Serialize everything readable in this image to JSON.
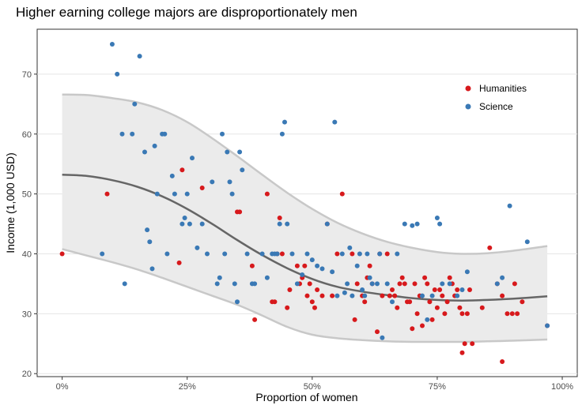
{
  "chart_data": {
    "type": "scatter",
    "title": "Higher earning college majors are disproportionately men",
    "xlabel": "Proportion of women",
    "ylabel": "Income (1,000 USD)",
    "xlim": [
      -0.05,
      1.03
    ],
    "ylim": [
      19.5,
      77.5
    ],
    "x_ticks": [
      0,
      0.25,
      0.5,
      0.75,
      1.0
    ],
    "x_tick_labels": [
      "0%",
      "25%",
      "50%",
      "75%",
      "100%"
    ],
    "y_ticks": [
      20,
      30,
      40,
      50,
      60,
      70
    ],
    "y_tick_labels": [
      "20",
      "30",
      "40",
      "50",
      "60",
      "70"
    ],
    "grid": true,
    "legend_position": "top-right",
    "colors": {
      "Humanities": "#d7191c",
      "Science": "#3a79b5",
      "fit_line": "#666666",
      "band_fill": "#ebebeb",
      "band_edge": "#c8c8c8",
      "grid": "#e5e5e5",
      "panel_border": "#333333"
    },
    "series": [
      {
        "name": "Humanities",
        "color": "#d7191c",
        "points": [
          [
            0.0,
            40
          ],
          [
            0.09,
            50
          ],
          [
            0.24,
            54
          ],
          [
            0.234,
            38.5
          ],
          [
            0.28,
            51
          ],
          [
            0.35,
            47
          ],
          [
            0.355,
            47
          ],
          [
            0.38,
            38
          ],
          [
            0.385,
            29
          ],
          [
            0.41,
            50
          ],
          [
            0.42,
            32
          ],
          [
            0.425,
            32
          ],
          [
            0.435,
            46
          ],
          [
            0.43,
            40
          ],
          [
            0.44,
            40
          ],
          [
            0.45,
            31
          ],
          [
            0.455,
            34
          ],
          [
            0.47,
            38
          ],
          [
            0.475,
            35
          ],
          [
            0.48,
            36
          ],
          [
            0.485,
            38
          ],
          [
            0.49,
            33
          ],
          [
            0.495,
            35
          ],
          [
            0.5,
            32
          ],
          [
            0.505,
            31
          ],
          [
            0.51,
            34
          ],
          [
            0.52,
            33
          ],
          [
            0.53,
            45
          ],
          [
            0.54,
            33
          ],
          [
            0.55,
            40
          ],
          [
            0.56,
            50
          ],
          [
            0.58,
            40
          ],
          [
            0.585,
            29
          ],
          [
            0.59,
            35
          ],
          [
            0.6,
            33
          ],
          [
            0.605,
            32
          ],
          [
            0.61,
            36
          ],
          [
            0.615,
            38
          ],
          [
            0.62,
            35
          ],
          [
            0.63,
            27
          ],
          [
            0.635,
            40
          ],
          [
            0.64,
            33
          ],
          [
            0.65,
            40
          ],
          [
            0.655,
            33
          ],
          [
            0.66,
            34
          ],
          [
            0.665,
            33
          ],
          [
            0.67,
            31
          ],
          [
            0.675,
            35
          ],
          [
            0.68,
            36
          ],
          [
            0.685,
            35
          ],
          [
            0.69,
            32
          ],
          [
            0.695,
            32
          ],
          [
            0.7,
            27.5
          ],
          [
            0.705,
            35
          ],
          [
            0.71,
            30
          ],
          [
            0.715,
            33
          ],
          [
            0.72,
            28
          ],
          [
            0.725,
            36
          ],
          [
            0.73,
            35
          ],
          [
            0.735,
            32
          ],
          [
            0.74,
            29
          ],
          [
            0.745,
            34
          ],
          [
            0.75,
            31
          ],
          [
            0.755,
            34
          ],
          [
            0.76,
            33
          ],
          [
            0.765,
            30
          ],
          [
            0.77,
            32
          ],
          [
            0.775,
            36
          ],
          [
            0.78,
            35
          ],
          [
            0.785,
            33
          ],
          [
            0.79,
            34
          ],
          [
            0.795,
            31
          ],
          [
            0.8,
            30
          ],
          [
            0.805,
            25
          ],
          [
            0.8,
            23.5
          ],
          [
            0.81,
            30
          ],
          [
            0.815,
            34
          ],
          [
            0.82,
            25
          ],
          [
            0.84,
            31
          ],
          [
            0.855,
            41
          ],
          [
            0.87,
            35
          ],
          [
            0.88,
            33
          ],
          [
            0.88,
            22
          ],
          [
            0.89,
            30
          ],
          [
            0.9,
            30
          ],
          [
            0.905,
            35
          ],
          [
            0.91,
            30
          ],
          [
            0.92,
            32
          ],
          [
            0.97,
            28
          ]
        ]
      },
      {
        "name": "Science",
        "color": "#3a79b5",
        "points": [
          [
            0.08,
            40
          ],
          [
            0.1,
            75
          ],
          [
            0.11,
            70
          ],
          [
            0.12,
            60
          ],
          [
            0.125,
            35
          ],
          [
            0.14,
            60
          ],
          [
            0.145,
            65
          ],
          [
            0.155,
            73
          ],
          [
            0.165,
            57
          ],
          [
            0.17,
            44
          ],
          [
            0.175,
            42
          ],
          [
            0.18,
            37.5
          ],
          [
            0.185,
            58
          ],
          [
            0.19,
            50
          ],
          [
            0.2,
            60
          ],
          [
            0.205,
            60
          ],
          [
            0.21,
            40
          ],
          [
            0.22,
            53
          ],
          [
            0.225,
            50
          ],
          [
            0.24,
            45
          ],
          [
            0.245,
            46
          ],
          [
            0.25,
            50
          ],
          [
            0.255,
            45
          ],
          [
            0.26,
            56
          ],
          [
            0.27,
            41
          ],
          [
            0.28,
            45
          ],
          [
            0.29,
            40
          ],
          [
            0.3,
            52
          ],
          [
            0.31,
            35
          ],
          [
            0.315,
            36
          ],
          [
            0.32,
            60
          ],
          [
            0.325,
            40
          ],
          [
            0.33,
            57
          ],
          [
            0.335,
            52
          ],
          [
            0.34,
            50
          ],
          [
            0.345,
            35
          ],
          [
            0.35,
            32
          ],
          [
            0.355,
            57
          ],
          [
            0.36,
            54
          ],
          [
            0.37,
            40
          ],
          [
            0.38,
            35
          ],
          [
            0.385,
            35
          ],
          [
            0.4,
            40
          ],
          [
            0.41,
            36
          ],
          [
            0.42,
            40
          ],
          [
            0.425,
            40
          ],
          [
            0.43,
            40
          ],
          [
            0.435,
            45
          ],
          [
            0.44,
            60
          ],
          [
            0.445,
            62
          ],
          [
            0.45,
            45
          ],
          [
            0.46,
            40
          ],
          [
            0.47,
            35
          ],
          [
            0.48,
            36.5
          ],
          [
            0.49,
            40
          ],
          [
            0.5,
            39
          ],
          [
            0.51,
            38
          ],
          [
            0.52,
            37.5
          ],
          [
            0.53,
            45
          ],
          [
            0.54,
            37
          ],
          [
            0.545,
            62
          ],
          [
            0.55,
            33
          ],
          [
            0.56,
            40
          ],
          [
            0.565,
            33.5
          ],
          [
            0.57,
            35
          ],
          [
            0.575,
            41
          ],
          [
            0.58,
            33
          ],
          [
            0.59,
            38
          ],
          [
            0.595,
            40
          ],
          [
            0.6,
            34
          ],
          [
            0.605,
            33
          ],
          [
            0.61,
            40
          ],
          [
            0.615,
            36
          ],
          [
            0.62,
            35
          ],
          [
            0.63,
            35
          ],
          [
            0.635,
            40
          ],
          [
            0.64,
            26
          ],
          [
            0.65,
            35
          ],
          [
            0.66,
            32
          ],
          [
            0.67,
            40
          ],
          [
            0.685,
            45
          ],
          [
            0.7,
            44.7
          ],
          [
            0.71,
            45
          ],
          [
            0.72,
            33
          ],
          [
            0.73,
            29
          ],
          [
            0.74,
            33
          ],
          [
            0.75,
            46
          ],
          [
            0.755,
            45
          ],
          [
            0.76,
            35
          ],
          [
            0.775,
            35
          ],
          [
            0.79,
            33
          ],
          [
            0.8,
            34
          ],
          [
            0.81,
            37
          ],
          [
            0.87,
            35
          ],
          [
            0.88,
            36
          ],
          [
            0.895,
            48
          ],
          [
            0.93,
            42
          ],
          [
            0.97,
            28
          ]
        ]
      }
    ],
    "smooth_fit": {
      "line": [
        [
          0.0,
          53.2
        ],
        [
          0.05,
          53.0
        ],
        [
          0.1,
          52.3
        ],
        [
          0.15,
          51.2
        ],
        [
          0.2,
          49.6
        ],
        [
          0.25,
          47.5
        ],
        [
          0.3,
          45.0
        ],
        [
          0.35,
          42.3
        ],
        [
          0.4,
          39.8
        ],
        [
          0.45,
          37.6
        ],
        [
          0.5,
          35.8
        ],
        [
          0.55,
          34.5
        ],
        [
          0.6,
          33.7
        ],
        [
          0.65,
          33.1
        ],
        [
          0.7,
          32.6
        ],
        [
          0.75,
          32.3
        ],
        [
          0.8,
          32.2
        ],
        [
          0.85,
          32.3
        ],
        [
          0.9,
          32.5
        ],
        [
          0.97,
          32.9
        ]
      ],
      "upper": [
        [
          0.0,
          66.6
        ],
        [
          0.05,
          66.5
        ],
        [
          0.1,
          66.0
        ],
        [
          0.15,
          65.3
        ],
        [
          0.2,
          64.0
        ],
        [
          0.25,
          62.0
        ],
        [
          0.3,
          59.3
        ],
        [
          0.35,
          56.3
        ],
        [
          0.4,
          53.2
        ],
        [
          0.45,
          50.2
        ],
        [
          0.5,
          47.5
        ],
        [
          0.55,
          45.2
        ],
        [
          0.6,
          43.4
        ],
        [
          0.65,
          42.0
        ],
        [
          0.7,
          41.0
        ],
        [
          0.75,
          40.3
        ],
        [
          0.8,
          40.0
        ],
        [
          0.85,
          40.1
        ],
        [
          0.9,
          40.5
        ],
        [
          0.97,
          41.3
        ]
      ],
      "lower": [
        [
          0.0,
          40.8
        ],
        [
          0.05,
          39.7
        ],
        [
          0.1,
          38.6
        ],
        [
          0.15,
          37.4
        ],
        [
          0.2,
          36.0
        ],
        [
          0.25,
          34.5
        ],
        [
          0.3,
          33.0
        ],
        [
          0.35,
          31.5
        ],
        [
          0.4,
          29.7
        ],
        [
          0.45,
          27.8
        ],
        [
          0.5,
          26.5
        ],
        [
          0.55,
          25.9
        ],
        [
          0.6,
          25.6
        ],
        [
          0.65,
          25.4
        ],
        [
          0.7,
          25.3
        ],
        [
          0.75,
          25.3
        ],
        [
          0.8,
          25.3
        ],
        [
          0.85,
          25.4
        ],
        [
          0.9,
          25.5
        ],
        [
          0.97,
          25.7
        ]
      ]
    }
  }
}
